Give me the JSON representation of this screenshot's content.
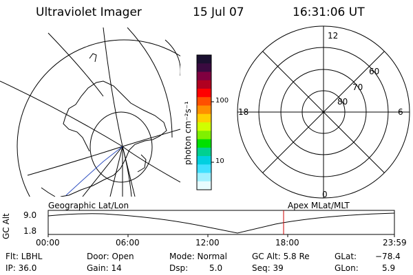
{
  "header": {
    "instrument": "Ultraviolet Imager",
    "date": "15 Jul 07",
    "time": "16:31:06 UT"
  },
  "colorbar": {
    "unit_label": "photon cm⁻²s⁻¹",
    "ticks": [
      "100",
      "10"
    ],
    "colors": [
      "#1a1030",
      "#3a0a40",
      "#800040",
      "#b00020",
      "#ff0000",
      "#ff5000",
      "#ff9000",
      "#ffd000",
      "#d0ff00",
      "#80f000",
      "#00e000",
      "#00d090",
      "#00d0e0",
      "#40e0ff",
      "#a0f0ff",
      "#e8fcff"
    ]
  },
  "geo_map": {
    "label": "Geographic Lat/Lon"
  },
  "polar_plot": {
    "label": "Apex MLat/MLT",
    "mlt_labels": {
      "top": "12",
      "left": "18",
      "right": "6",
      "bottom": "0"
    },
    "lat_labels": [
      "60",
      "70",
      "80"
    ]
  },
  "timeline": {
    "axis_label": "GC Alt",
    "y_ticks": [
      "9.0",
      "1.8"
    ],
    "x_ticks": [
      "00:00",
      "06:00",
      "12:00",
      "18:00",
      "23:59"
    ],
    "marker_color": "#cc0000"
  },
  "info": {
    "filter": "Flt: LBHL",
    "ip": "IP: 36.0",
    "door": "Door: Open",
    "gain": "Gain: 14",
    "mode": "Mode: Normal",
    "dsp_label": "Dsp:",
    "dsp_value": "5.0",
    "gc_alt": "GC Alt: 5.8 Re",
    "seq": "Seq: 39",
    "glat_label": "GLat:",
    "glat_value": "−78.4",
    "glon_label": "GLon:",
    "glon_value": "5.9"
  }
}
